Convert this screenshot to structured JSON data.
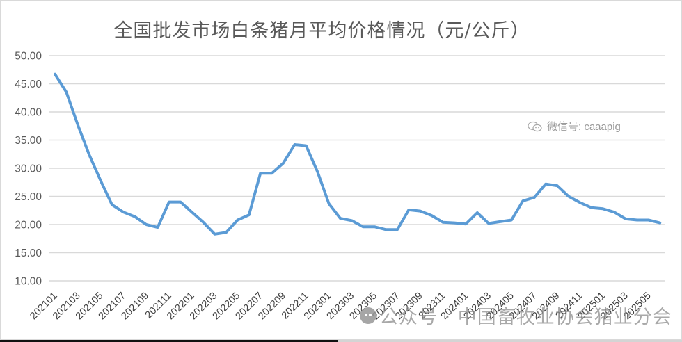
{
  "title": "全国批发市场白条猪月平均价格情况（元/公斤）",
  "watermarks": {
    "wechat_id": "微信号: caaapig",
    "account": "公众号 · 中国畜牧业协会猪业分会"
  },
  "colors": {
    "line": "#5b9bd5",
    "grid": "#d9d9d9",
    "title": "#595959",
    "axis_text": "#595959"
  },
  "chart_data": {
    "type": "line",
    "title": "全国批发市场白条猪月平均价格情况（元/公斤）",
    "xlabel": "",
    "ylabel": "元/公斤",
    "ylim": [
      10,
      50
    ],
    "yticks": [
      "10.00",
      "15.00",
      "20.00",
      "25.00",
      "30.00",
      "35.00",
      "40.00",
      "45.00",
      "50.00"
    ],
    "grid": true,
    "legend": "none",
    "x": [
      "202101",
      "202102",
      "202103",
      "202104",
      "202105",
      "202106",
      "202107",
      "202108",
      "202109",
      "202110",
      "202111",
      "202112",
      "202201",
      "202202",
      "202203",
      "202204",
      "202205",
      "202206",
      "202207",
      "202208",
      "202209",
      "202210",
      "202211",
      "202212",
      "202301",
      "202302",
      "202303",
      "202304",
      "202305",
      "202306",
      "202307",
      "202308",
      "202309",
      "202310",
      "202311",
      "202312",
      "202401",
      "202402",
      "202403",
      "202404",
      "202405",
      "202406",
      "202407",
      "202408",
      "202409",
      "202410",
      "202411",
      "202412",
      "202501",
      "202502",
      "202503",
      "202504",
      "202505",
      "202506"
    ],
    "xtick_labels": [
      "202101",
      "202103",
      "202105",
      "202107",
      "202109",
      "202111",
      "202201",
      "202203",
      "202205",
      "202207",
      "202209",
      "202211",
      "202301",
      "202303",
      "202305",
      "202307",
      "202309",
      "202311",
      "202401",
      "202403",
      "202405",
      "202407",
      "202409",
      "202411",
      "202501",
      "202503",
      "202505"
    ],
    "series": [
      {
        "name": "白条猪月平均价格",
        "values": [
          46.7,
          43.5,
          37.7,
          32.4,
          27.8,
          23.5,
          22.2,
          21.4,
          20.0,
          19.5,
          24.0,
          24.0,
          22.2,
          20.4,
          18.3,
          18.6,
          20.8,
          21.7,
          29.1,
          29.1,
          30.9,
          34.2,
          34.0,
          29.4,
          23.7,
          21.1,
          20.7,
          19.6,
          19.6,
          19.1,
          19.1,
          22.6,
          22.4,
          21.6,
          20.4,
          20.3,
          20.1,
          22.1,
          20.2,
          20.5,
          20.8,
          24.2,
          24.8,
          27.2,
          26.9,
          25.0,
          23.9,
          23.0,
          22.8,
          22.2,
          21.0,
          20.8,
          20.8,
          20.3
        ]
      }
    ]
  }
}
